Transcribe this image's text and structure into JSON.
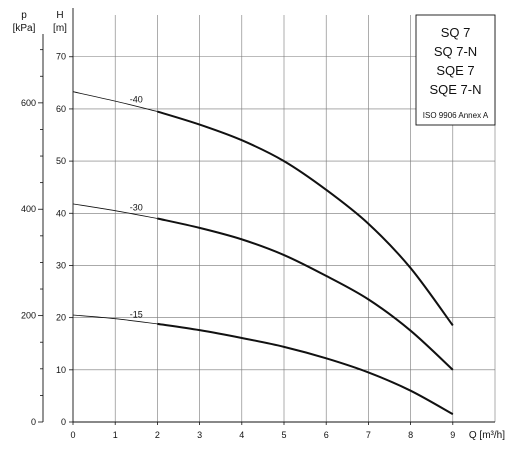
{
  "chart_data": {
    "type": "line",
    "x_axis": {
      "label": "Q [m³/h]",
      "ticks": [
        0,
        1,
        2,
        3,
        4,
        5,
        6,
        7,
        8,
        9
      ],
      "range": [
        0,
        10
      ]
    },
    "y_axis_head": {
      "label_top": "H",
      "label_unit": "[m]",
      "ticks": [
        0,
        10,
        20,
        30,
        40,
        50,
        60,
        70
      ],
      "range": [
        0,
        78
      ]
    },
    "y_axis_pressure": {
      "label_top": "p",
      "label_unit": "[kPa]",
      "ticks": [
        0,
        200,
        400,
        600
      ]
    },
    "grid": true,
    "legend_box": {
      "models": [
        "SQ 7",
        "SQ 7-N",
        "SQE 7",
        "SQE 7-N"
      ],
      "note": "ISO 9906 Annex A"
    },
    "series": [
      {
        "name": "-40",
        "x": [
          0,
          1,
          2,
          3,
          4,
          5,
          6,
          7,
          8,
          9
        ],
        "y": [
          63.3,
          61.5,
          59.5,
          57.0,
          54.0,
          50.0,
          44.5,
          38.0,
          29.5,
          18.5
        ]
      },
      {
        "name": "-30",
        "x": [
          0,
          1,
          2,
          3,
          4,
          5,
          6,
          7,
          8,
          9
        ],
        "y": [
          41.8,
          40.5,
          39.0,
          37.2,
          35.0,
          32.0,
          28.0,
          23.5,
          17.5,
          10.0
        ]
      },
      {
        "name": "-15",
        "x": [
          0,
          1,
          2,
          3,
          4,
          5,
          6,
          7,
          8,
          9
        ],
        "y": [
          20.5,
          19.8,
          18.8,
          17.6,
          16.1,
          14.4,
          12.2,
          9.5,
          6.0,
          1.5
        ]
      }
    ]
  }
}
